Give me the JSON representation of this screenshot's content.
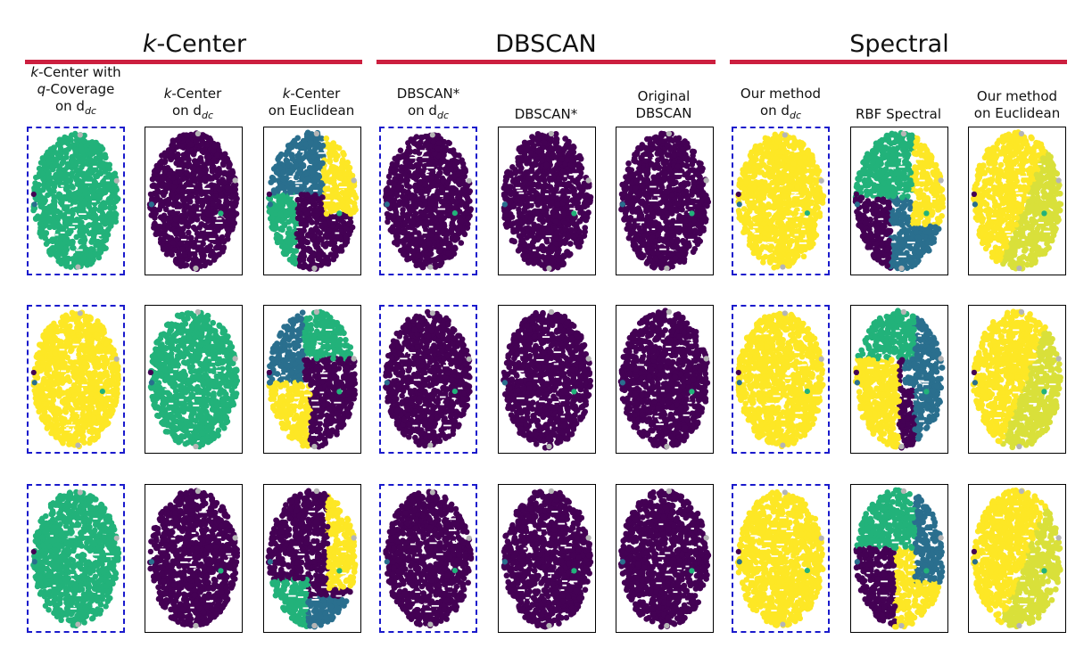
{
  "groups": [
    {
      "title_prefix": "k",
      "title_rest": "-Center"
    },
    {
      "title": "DBSCAN"
    },
    {
      "title": "Spectral"
    }
  ],
  "colors": {
    "rule": "#cc1f3f",
    "highlight_border": "#1a1acc",
    "purple": "#440154",
    "blue": "#2a6f8e",
    "green": "#22b27a",
    "yellow": "#fde725",
    "lime": "#d9e03a",
    "gray": "#b5b5b5"
  },
  "columns": [
    {
      "lines": [
        [
          "k",
          "it"
        ],
        [
          "-Center with",
          ""
        ],
        [
          "q",
          "it"
        ],
        [
          "-Coverage",
          ""
        ],
        [
          "on d",
          ""
        ],
        [
          "dc",
          "sub"
        ]
      ],
      "highlight": true
    },
    {
      "lines": [
        [
          "k",
          "it"
        ],
        [
          "-Center",
          ""
        ],
        [
          "on d",
          ""
        ],
        [
          "dc",
          "sub"
        ]
      ],
      "highlight": false
    },
    {
      "lines": [
        [
          "k",
          "it"
        ],
        [
          "-Center",
          ""
        ],
        [
          "on Euclidean",
          ""
        ]
      ],
      "highlight": false
    },
    {
      "lines": [
        [
          "DBSCAN*",
          ""
        ],
        [
          "on d",
          ""
        ],
        [
          "dc",
          "sub"
        ]
      ],
      "highlight": true
    },
    {
      "lines": [
        [
          "DBSCAN*",
          ""
        ]
      ],
      "highlight": false
    },
    {
      "lines": [
        [
          "Original",
          ""
        ],
        [
          "DBSCAN",
          ""
        ]
      ],
      "highlight": false
    },
    {
      "lines": [
        [
          "Our method",
          ""
        ],
        [
          "on d",
          ""
        ],
        [
          "dc",
          "sub"
        ]
      ],
      "highlight": true
    },
    {
      "lines": [
        [
          "RBF Spectral",
          ""
        ]
      ],
      "highlight": false
    },
    {
      "lines": [
        [
          "Our method",
          ""
        ],
        [
          "on Euclidean",
          ""
        ]
      ],
      "highlight": false
    }
  ],
  "label_text": {
    "c0": {
      "a": "k",
      "b": "-Center with",
      "c": "q",
      "d": "-Coverage",
      "e": "on d",
      "f": "dc"
    },
    "c1": {
      "a": "k",
      "b": "-Center",
      "e": "on d",
      "f": "dc"
    },
    "c2": {
      "a": "k",
      "b": "-Center",
      "c": "on Euclidean"
    },
    "c3": {
      "a": "DBSCAN*",
      "e": "on d",
      "f": "dc"
    },
    "c4": {
      "a": "DBSCAN*"
    },
    "c5": {
      "a": "Original",
      "b": "DBSCAN"
    },
    "c6": {
      "a": "Our method",
      "e": "on d",
      "f": "dc"
    },
    "c7": {
      "a": "RBF Spectral"
    },
    "c8": {
      "a": "Our method",
      "b": "on Euclidean"
    }
  },
  "panels": [
    [
      "green",
      "purple",
      "split3_a",
      "purple",
      "purple",
      "purple",
      "yellow",
      "rbf_a",
      "mixed_a"
    ],
    [
      "yellow",
      "green",
      "split3_b",
      "purple",
      "purple",
      "purple",
      "yellow",
      "rbf_b",
      "mixed_b"
    ],
    [
      "green",
      "purple",
      "split3_c",
      "purple",
      "purple",
      "purple",
      "yellow",
      "rbf_c",
      "mixed_c"
    ]
  ]
}
